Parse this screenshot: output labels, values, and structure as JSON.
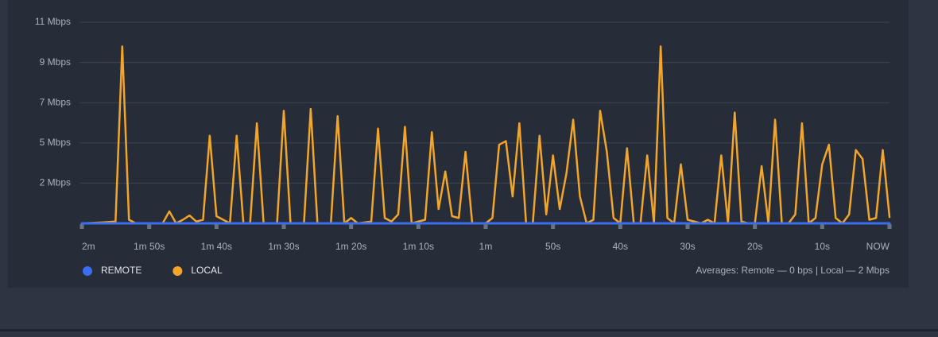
{
  "chart_data": {
    "type": "line",
    "x": [
      -120,
      -117,
      -115,
      -114,
      -113,
      -112,
      -108,
      -107,
      -106,
      -105,
      -104,
      -103,
      -102,
      -101,
      -100,
      -99,
      -98,
      -97,
      -96,
      -95,
      -94,
      -93,
      -91,
      -90,
      -89,
      -87,
      -86,
      -85,
      -83,
      -82,
      -81,
      -80,
      -79,
      -77,
      -76,
      -75,
      -74,
      -73,
      -72,
      -71,
      -69,
      -68,
      -67,
      -66,
      -65,
      -64,
      -63,
      -62,
      -60,
      -59,
      -58,
      -57,
      -56,
      -55,
      -54,
      -53,
      -52,
      -51,
      -50,
      -49,
      -48,
      -47,
      -46,
      -45,
      -44,
      -43,
      -42,
      -41,
      -40,
      -39,
      -38,
      -37,
      -36,
      -35,
      -34,
      -33,
      -32,
      -31,
      -30,
      -28,
      -27,
      -26,
      -25,
      -24,
      -23,
      -22,
      -21,
      -20,
      -19,
      -18,
      -17,
      -16,
      -15,
      -14,
      -13,
      -12,
      -11,
      -10,
      -9,
      -8,
      -7,
      -6,
      -5,
      -4,
      -3,
      -2,
      -1,
      0
    ],
    "series": [
      {
        "name": "REMOTE",
        "color": "#3a6df0",
        "values": [
          0,
          0,
          0,
          0,
          0,
          0,
          0,
          0,
          0,
          0,
          0,
          0,
          0,
          0,
          0,
          0,
          0,
          0,
          0,
          0,
          0,
          0,
          0,
          0,
          0,
          0,
          0,
          0,
          0,
          0,
          0,
          0,
          0,
          0,
          0,
          0,
          0,
          0,
          0,
          0,
          0,
          0,
          0,
          0,
          0,
          0,
          0,
          0,
          0,
          0,
          0,
          0,
          0,
          0,
          0,
          0,
          0,
          0,
          0,
          0,
          0,
          0,
          0,
          0,
          0,
          0,
          0,
          0,
          0,
          0,
          0,
          0,
          0,
          0,
          0,
          0,
          0,
          0,
          0,
          0,
          0,
          0,
          0,
          0,
          0,
          0,
          0,
          0,
          0,
          0,
          0,
          0,
          0,
          0,
          0,
          0,
          0,
          0,
          0,
          0,
          0,
          0,
          0,
          0,
          0,
          0,
          0,
          0
        ]
      },
      {
        "name": "LOCAL",
        "color": "#f2a52b",
        "values": [
          0,
          0.05,
          0.1,
          9.9,
          0.2,
          0,
          0,
          0.67,
          0,
          0.2,
          0.44,
          0.1,
          0.2,
          4.9,
          0.4,
          0.2,
          0,
          4.9,
          0,
          0,
          5.6,
          0,
          0,
          6.3,
          0,
          0,
          6.4,
          0,
          0,
          6.0,
          0,
          0.3,
          0,
          0.1,
          5.3,
          0.3,
          0.1,
          0.5,
          5.4,
          0,
          0.2,
          5.1,
          0.8,
          2.9,
          0.4,
          0.3,
          4.0,
          0,
          0,
          0.3,
          4.4,
          4.6,
          1.5,
          5.6,
          0,
          0,
          4.9,
          0.5,
          3.8,
          0.8,
          2.8,
          5.8,
          1.5,
          0,
          0.2,
          6.3,
          4.0,
          0.3,
          0,
          4.2,
          0,
          0,
          3.8,
          0,
          9.9,
          0.3,
          0,
          3.3,
          0.2,
          0,
          0.2,
          0,
          3.8,
          0,
          6.2,
          0.1,
          0,
          0,
          3.2,
          0,
          5.8,
          0,
          0,
          0.5,
          5.6,
          0,
          0.3,
          3.3,
          4.4,
          0.3,
          0,
          0.5,
          4.1,
          3.6,
          0.2,
          0.3,
          4.1,
          0.35
        ]
      }
    ],
    "xlim": [
      -120,
      0
    ],
    "xticks": [
      {
        "value": -120,
        "label": "2m"
      },
      {
        "value": -110,
        "label": "1m 50s"
      },
      {
        "value": -100,
        "label": "1m 40s"
      },
      {
        "value": -90,
        "label": "1m 30s"
      },
      {
        "value": -80,
        "label": "1m 20s"
      },
      {
        "value": -70,
        "label": "1m 10s"
      },
      {
        "value": -60,
        "label": "1m"
      },
      {
        "value": -50,
        "label": "50s"
      },
      {
        "value": -40,
        "label": "40s"
      },
      {
        "value": -30,
        "label": "30s"
      },
      {
        "value": -20,
        "label": "20s"
      },
      {
        "value": -10,
        "label": "10s"
      },
      {
        "value": 0,
        "label": "NOW"
      }
    ],
    "ylim": [
      0,
      11.25
    ],
    "yticks": [
      {
        "value": 2.25,
        "label": "2 Mbps"
      },
      {
        "value": 4.5,
        "label": "5 Mbps"
      },
      {
        "value": 6.75,
        "label": "7 Mbps"
      },
      {
        "value": 9,
        "label": "9 Mbps"
      },
      {
        "value": 11.25,
        "label": "11 Mbps"
      }
    ],
    "grid": true,
    "averages": "Averages: Remote — 0 bps | Local — 2 Mbps"
  }
}
